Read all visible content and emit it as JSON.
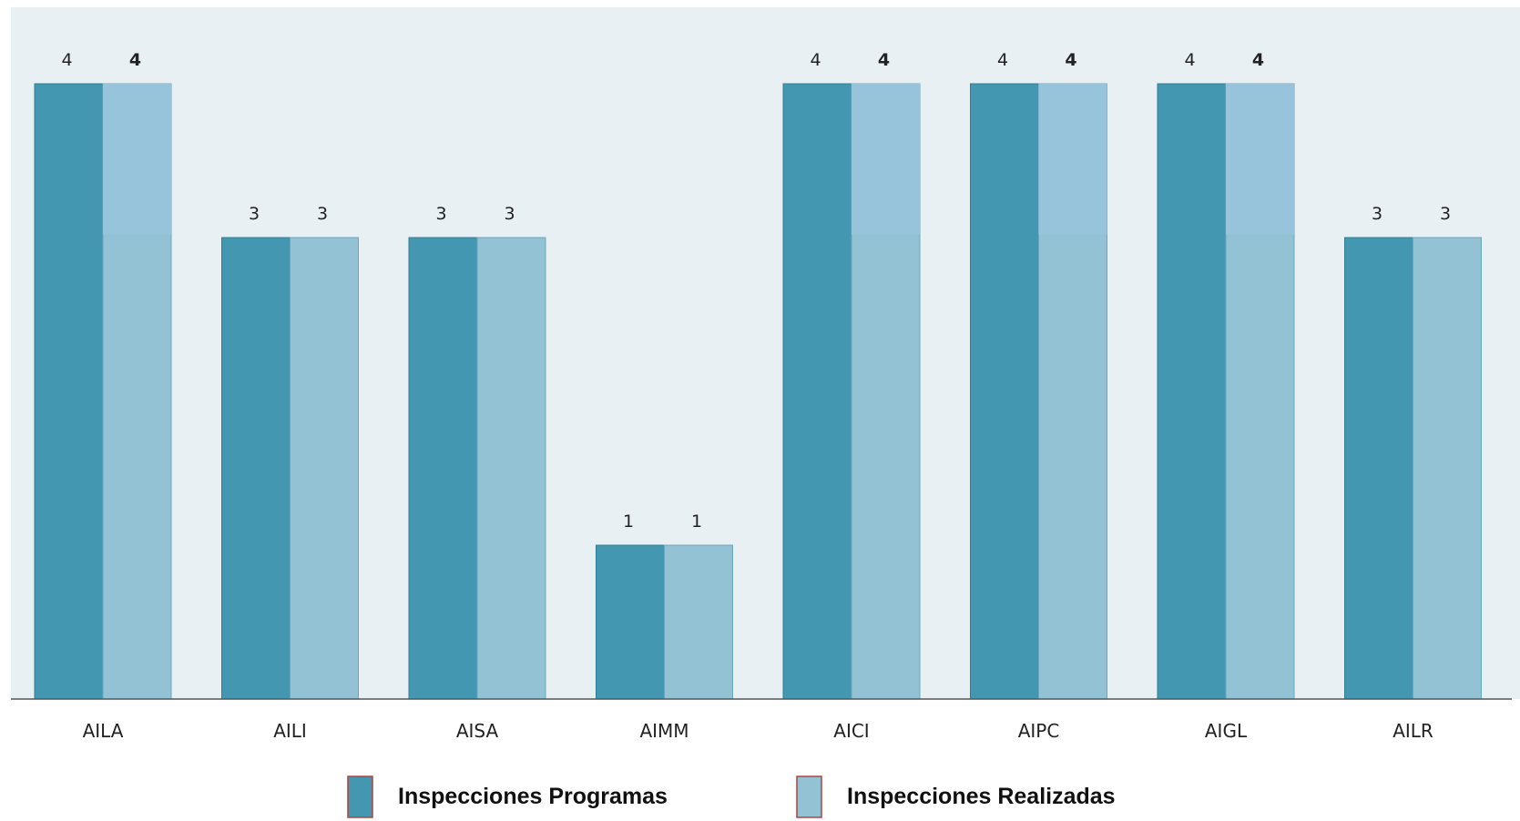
{
  "chart_data": {
    "type": "bar",
    "title": "",
    "xlabel": "",
    "ylabel": "",
    "ylim": [
      0,
      4.5
    ],
    "grid": false,
    "legend_position": "bottom",
    "categories": [
      "AILA",
      "AILI",
      "AISA",
      "AIMM",
      "AICI",
      "AIPC",
      "AIGL",
      "AILR"
    ],
    "series": [
      {
        "name": "Inspecciones Programas",
        "values": [
          4,
          3,
          3,
          1,
          4,
          4,
          4,
          3
        ],
        "color": "#4397B0"
      },
      {
        "name": "Inspecciones Realizadas",
        "values": [
          4,
          3,
          3,
          1,
          4,
          4,
          4,
          3
        ],
        "color": "#93C2D4"
      }
    ]
  },
  "colors": {
    "plot_background": "#E9F0F4",
    "axis_line": "#555555",
    "highlight_series_2": "#99C4DB"
  }
}
